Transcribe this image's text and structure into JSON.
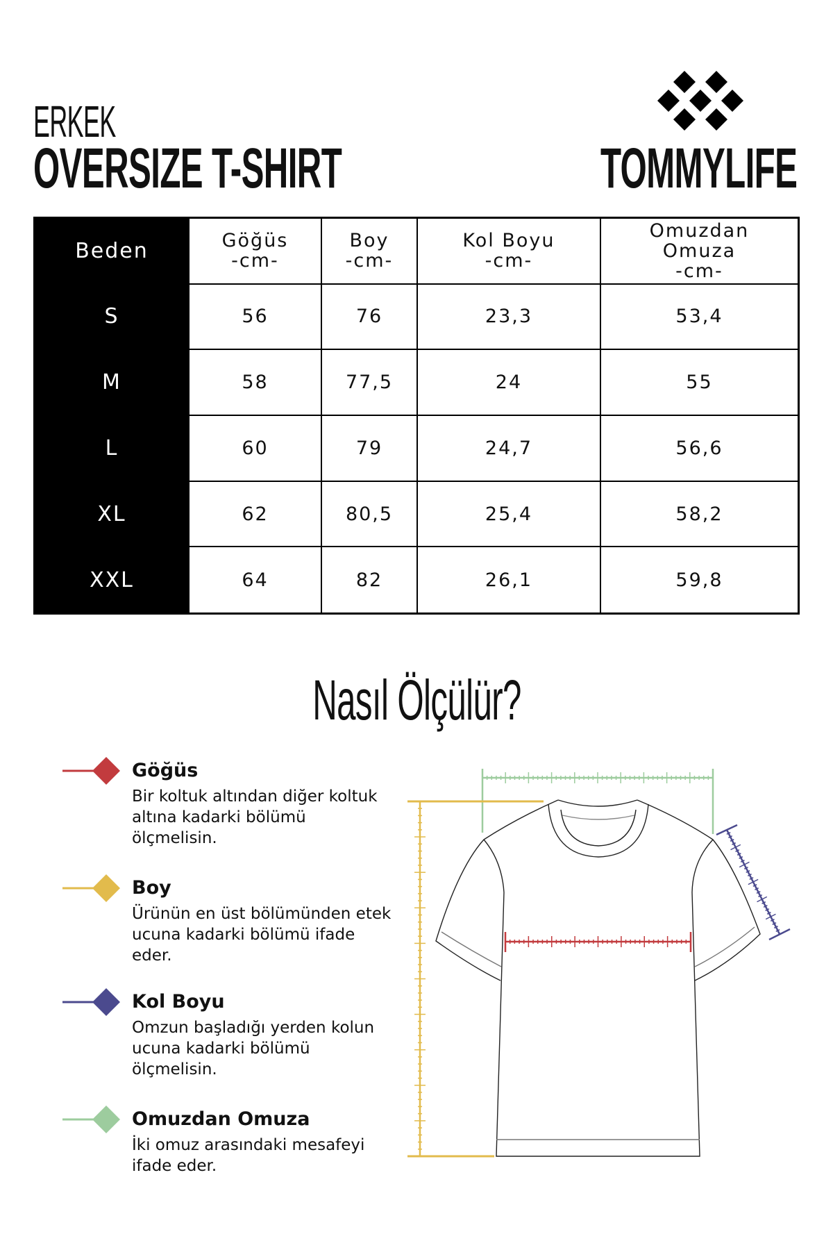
{
  "header": {
    "subtitle": "ERKEK",
    "title": "OVERSIZE T-SHIRT",
    "brand": "TOMMYLIFE"
  },
  "table": {
    "columns": [
      "Beden",
      "Göğüs\n-cm-",
      "Boy\n-cm-",
      "Kol Boyu\n-cm-",
      "Omuzdan\nOmuza\n-cm-"
    ],
    "rows": [
      [
        "S",
        "56",
        "76",
        "23,3",
        "53,4"
      ],
      [
        "M",
        "58",
        "77,5",
        "24",
        "55"
      ],
      [
        "L",
        "60",
        "79",
        "24,7",
        "56,6"
      ],
      [
        "XL",
        "62",
        "80,5",
        "25,4",
        "58,2"
      ],
      [
        "XXL",
        "64",
        "82",
        "26,1",
        "59,8"
      ]
    ]
  },
  "howto": {
    "title": "Nasıl Ölçülür?",
    "items": [
      {
        "title": "Göğüs",
        "desc": "Bir koltuk altından diğer koltuk altına kadarki bölümü ölçmelisin.",
        "color": "#c23b3e"
      },
      {
        "title": "Boy",
        "desc": "Ürünün en üst bölümünden etek ucuna kadarki bölümü ifade eder.",
        "color": "#e2bb4c"
      },
      {
        "title": "Kol Boyu",
        "desc": "Omzun başladığı yerden kolun ucuna kadarki bölümü ölçmelisin.",
        "color": "#4b4a8e"
      },
      {
        "title": "Omuzdan Omuza",
        "desc": "İki omuz arasındaki mesafeyi ifade eder.",
        "color": "#9dcc9e"
      }
    ]
  }
}
